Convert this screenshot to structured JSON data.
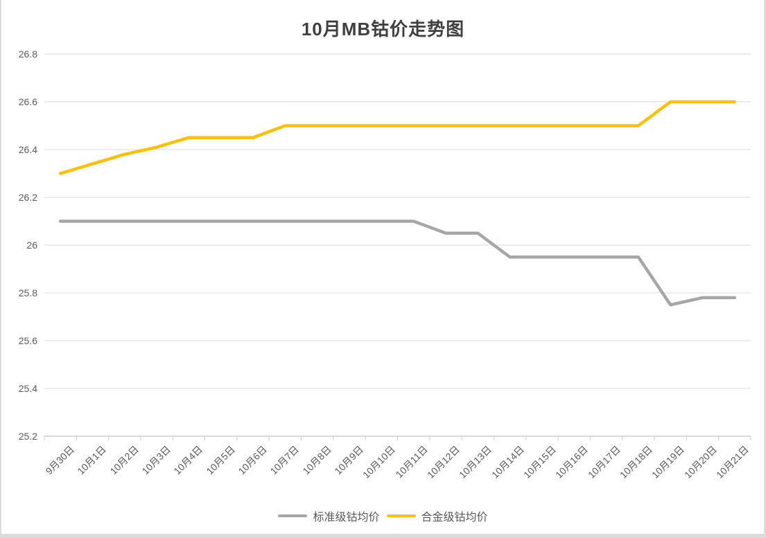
{
  "chart_data": {
    "type": "line",
    "title": "10月MB钴价走势图",
    "categories": [
      "9月30日",
      "10月1日",
      "10月2日",
      "10月3日",
      "10月4日",
      "10月5日",
      "10月6日",
      "10月7日",
      "10月8日",
      "10月9日",
      "10月10日",
      "10月11日",
      "10月12日",
      "10月13日",
      "10月14日",
      "10月15日",
      "10月16日",
      "10月17日",
      "10月18日",
      "10月19日",
      "10月20日",
      "10月21日"
    ],
    "series": [
      {
        "name": "标准级钴均价",
        "color": "#A6A6A6",
        "values": [
          26.1,
          26.1,
          26.1,
          26.1,
          26.1,
          26.1,
          26.1,
          26.1,
          26.1,
          26.1,
          26.1,
          26.1,
          26.05,
          26.05,
          25.95,
          25.95,
          25.95,
          25.95,
          25.95,
          25.75,
          25.78,
          25.78
        ]
      },
      {
        "name": "合金级钴均价",
        "color": "#FFC000",
        "values": [
          26.3,
          26.34,
          26.38,
          26.41,
          26.45,
          26.45,
          26.45,
          26.5,
          26.5,
          26.5,
          26.5,
          26.5,
          26.5,
          26.5,
          26.5,
          26.5,
          26.5,
          26.5,
          26.5,
          26.6,
          26.6,
          26.6
        ]
      }
    ],
    "xlabel": "",
    "ylabel": "",
    "ylim": [
      25.2,
      26.8
    ],
    "ytick_step": 0.2,
    "ytick_labels": [
      "25.2",
      "25.4",
      "25.6",
      "25.8",
      "26",
      "26.2",
      "26.4",
      "26.6",
      "26.8"
    ],
    "grid": "horizontal",
    "legend_position": "bottom",
    "colors": {
      "gridline": "#D9D9D9",
      "axis": "#D9D9D9",
      "tick": "#C9C9C9",
      "label": "#595959",
      "title": "#3F3F3F",
      "background": "#FFFFFF",
      "border": "#DCDCDC"
    }
  }
}
